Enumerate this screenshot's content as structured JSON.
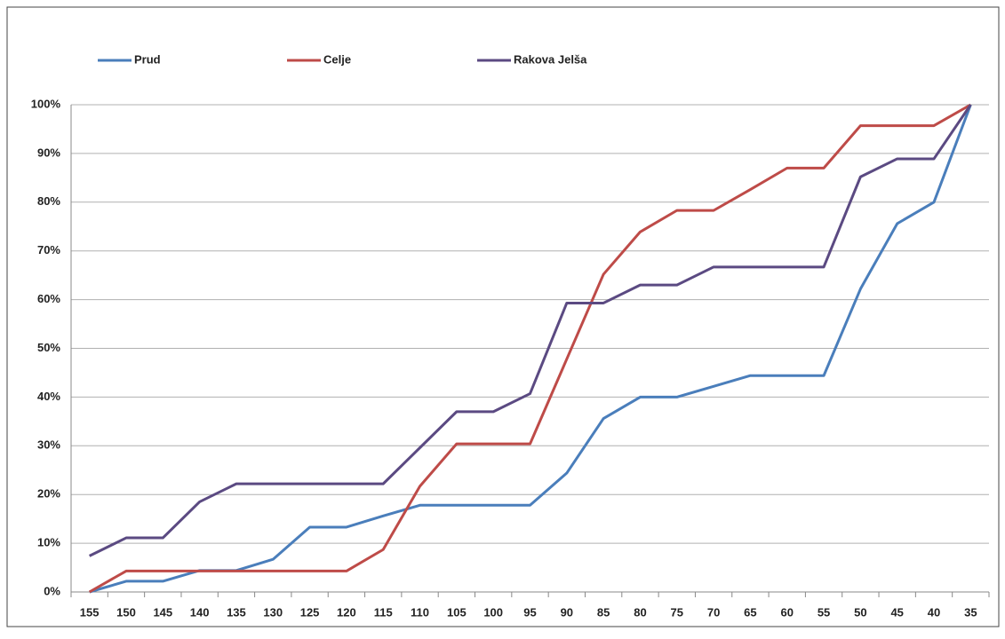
{
  "chart_data": {
    "type": "line",
    "categories": [
      "155",
      "150",
      "145",
      "140",
      "135",
      "130",
      "125",
      "120",
      "115",
      "110",
      "105",
      "100",
      "95",
      "90",
      "85",
      "80",
      "75",
      "70",
      "65",
      "60",
      "55",
      "50",
      "45",
      "40",
      "35"
    ],
    "series": [
      {
        "name": "Prud",
        "color": "#4a7ebb",
        "values": [
          0,
          2.2,
          2.2,
          4.4,
          4.4,
          6.7,
          13.3,
          13.3,
          15.6,
          17.8,
          17.8,
          17.8,
          17.8,
          24.4,
          35.6,
          40,
          40,
          42.2,
          44.4,
          44.4,
          44.4,
          62.2,
          75.6,
          80,
          100
        ]
      },
      {
        "name": "Celje",
        "color": "#be4b48",
        "values": [
          0,
          4.3,
          4.3,
          4.3,
          4.3,
          4.3,
          4.3,
          4.3,
          8.7,
          21.7,
          30.4,
          30.4,
          30.4,
          47.8,
          65.2,
          73.9,
          78.3,
          78.3,
          82.6,
          87,
          87,
          95.7,
          95.7,
          95.7,
          100
        ]
      },
      {
        "name": "Rakova Jelša",
        "color": "#5b4a82",
        "values": [
          7.4,
          11.1,
          11.1,
          18.5,
          22.2,
          22.2,
          22.2,
          22.2,
          22.2,
          29.6,
          37,
          37,
          40.7,
          59.3,
          59.3,
          63,
          63,
          66.7,
          66.7,
          66.7,
          66.7,
          85.2,
          88.9,
          88.9,
          100
        ]
      }
    ],
    "ylim": [
      0,
      100
    ],
    "yticks": [
      {
        "value": 0,
        "label": "0%"
      },
      {
        "value": 10,
        "label": "10%"
      },
      {
        "value": 20,
        "label": "20%"
      },
      {
        "value": 30,
        "label": "30%"
      },
      {
        "value": 40,
        "label": "40%"
      },
      {
        "value": 50,
        "label": "50%"
      },
      {
        "value": 60,
        "label": "60%"
      },
      {
        "value": 70,
        "label": "70%"
      },
      {
        "value": 80,
        "label": "80%"
      },
      {
        "value": 90,
        "label": "90%"
      },
      {
        "value": 100,
        "label": "100%"
      }
    ],
    "grid": true,
    "legend": "top"
  }
}
